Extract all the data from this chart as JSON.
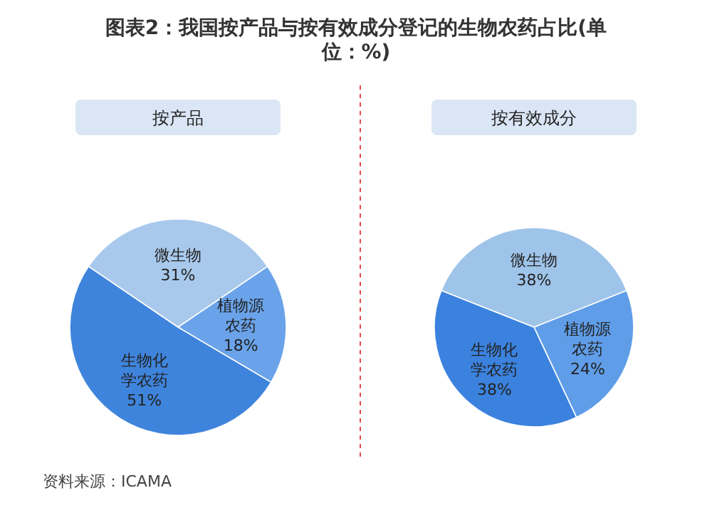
{
  "chart_data": [
    {
      "type": "pie",
      "title": "图表2：我国按产品与按有效成分登记的生物农药占比(单位：%)",
      "subtitle": "按产品",
      "categories": [
        "微生物",
        "植物源农药",
        "生物化学农药"
      ],
      "values": [
        31,
        18,
        51
      ],
      "value_labels": [
        "31%",
        "18%",
        "51%"
      ],
      "colors": [
        "#a9c9ec",
        "#6aa3ea",
        "#3f84dc"
      ],
      "annotations": [
        "资料来源：ICAMA"
      ]
    },
    {
      "type": "pie",
      "subtitle": "按有效成分",
      "categories": [
        "微生物",
        "植物源农药",
        "生物化学农药"
      ],
      "values": [
        38,
        24,
        38
      ],
      "value_labels": [
        "38%",
        "24%",
        "38%"
      ],
      "colors": [
        "#9fc4ea",
        "#5f9de8",
        "#3b82de"
      ]
    }
  ]
}
